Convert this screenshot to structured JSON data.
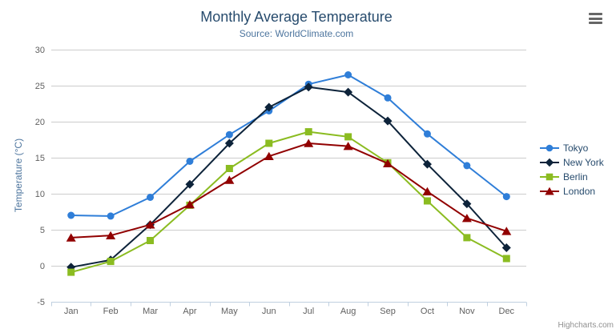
{
  "header": {
    "title": "Monthly Average Temperature",
    "subtitle": "Source: WorldClimate.com"
  },
  "credits": {
    "label": "Highcharts.com"
  },
  "chart_data": {
    "type": "line",
    "title": "Monthly Average Temperature",
    "subtitle": "Source: WorldClimate.com",
    "categories": [
      "Jan",
      "Feb",
      "Mar",
      "Apr",
      "May",
      "Jun",
      "Jul",
      "Aug",
      "Sep",
      "Oct",
      "Nov",
      "Dec"
    ],
    "series": [
      {
        "name": "Tokyo",
        "color": "#2f7ed8",
        "marker": "circle",
        "values": [
          7.0,
          6.9,
          9.5,
          14.5,
          18.2,
          21.5,
          25.2,
          26.5,
          23.3,
          18.3,
          13.9,
          9.6
        ]
      },
      {
        "name": "New York",
        "color": "#0d233a",
        "marker": "diamond",
        "values": [
          -0.2,
          0.8,
          5.7,
          11.3,
          17.0,
          22.0,
          24.8,
          24.1,
          20.1,
          14.1,
          8.6,
          2.5
        ]
      },
      {
        "name": "Berlin",
        "color": "#8bbc21",
        "marker": "square",
        "values": [
          -0.9,
          0.6,
          3.5,
          8.4,
          13.5,
          17.0,
          18.6,
          17.9,
          14.3,
          9.0,
          3.9,
          1.0
        ]
      },
      {
        "name": "London",
        "color": "#910000",
        "marker": "triangle",
        "values": [
          3.9,
          4.2,
          5.7,
          8.5,
          11.9,
          15.2,
          17.0,
          16.6,
          14.2,
          10.3,
          6.6,
          4.8
        ]
      }
    ],
    "xlabel": "",
    "ylabel": "Temperature (°C)",
    "ylim": [
      -5,
      30
    ],
    "ytick_step": 5,
    "grid": true,
    "legend_position": "right"
  }
}
